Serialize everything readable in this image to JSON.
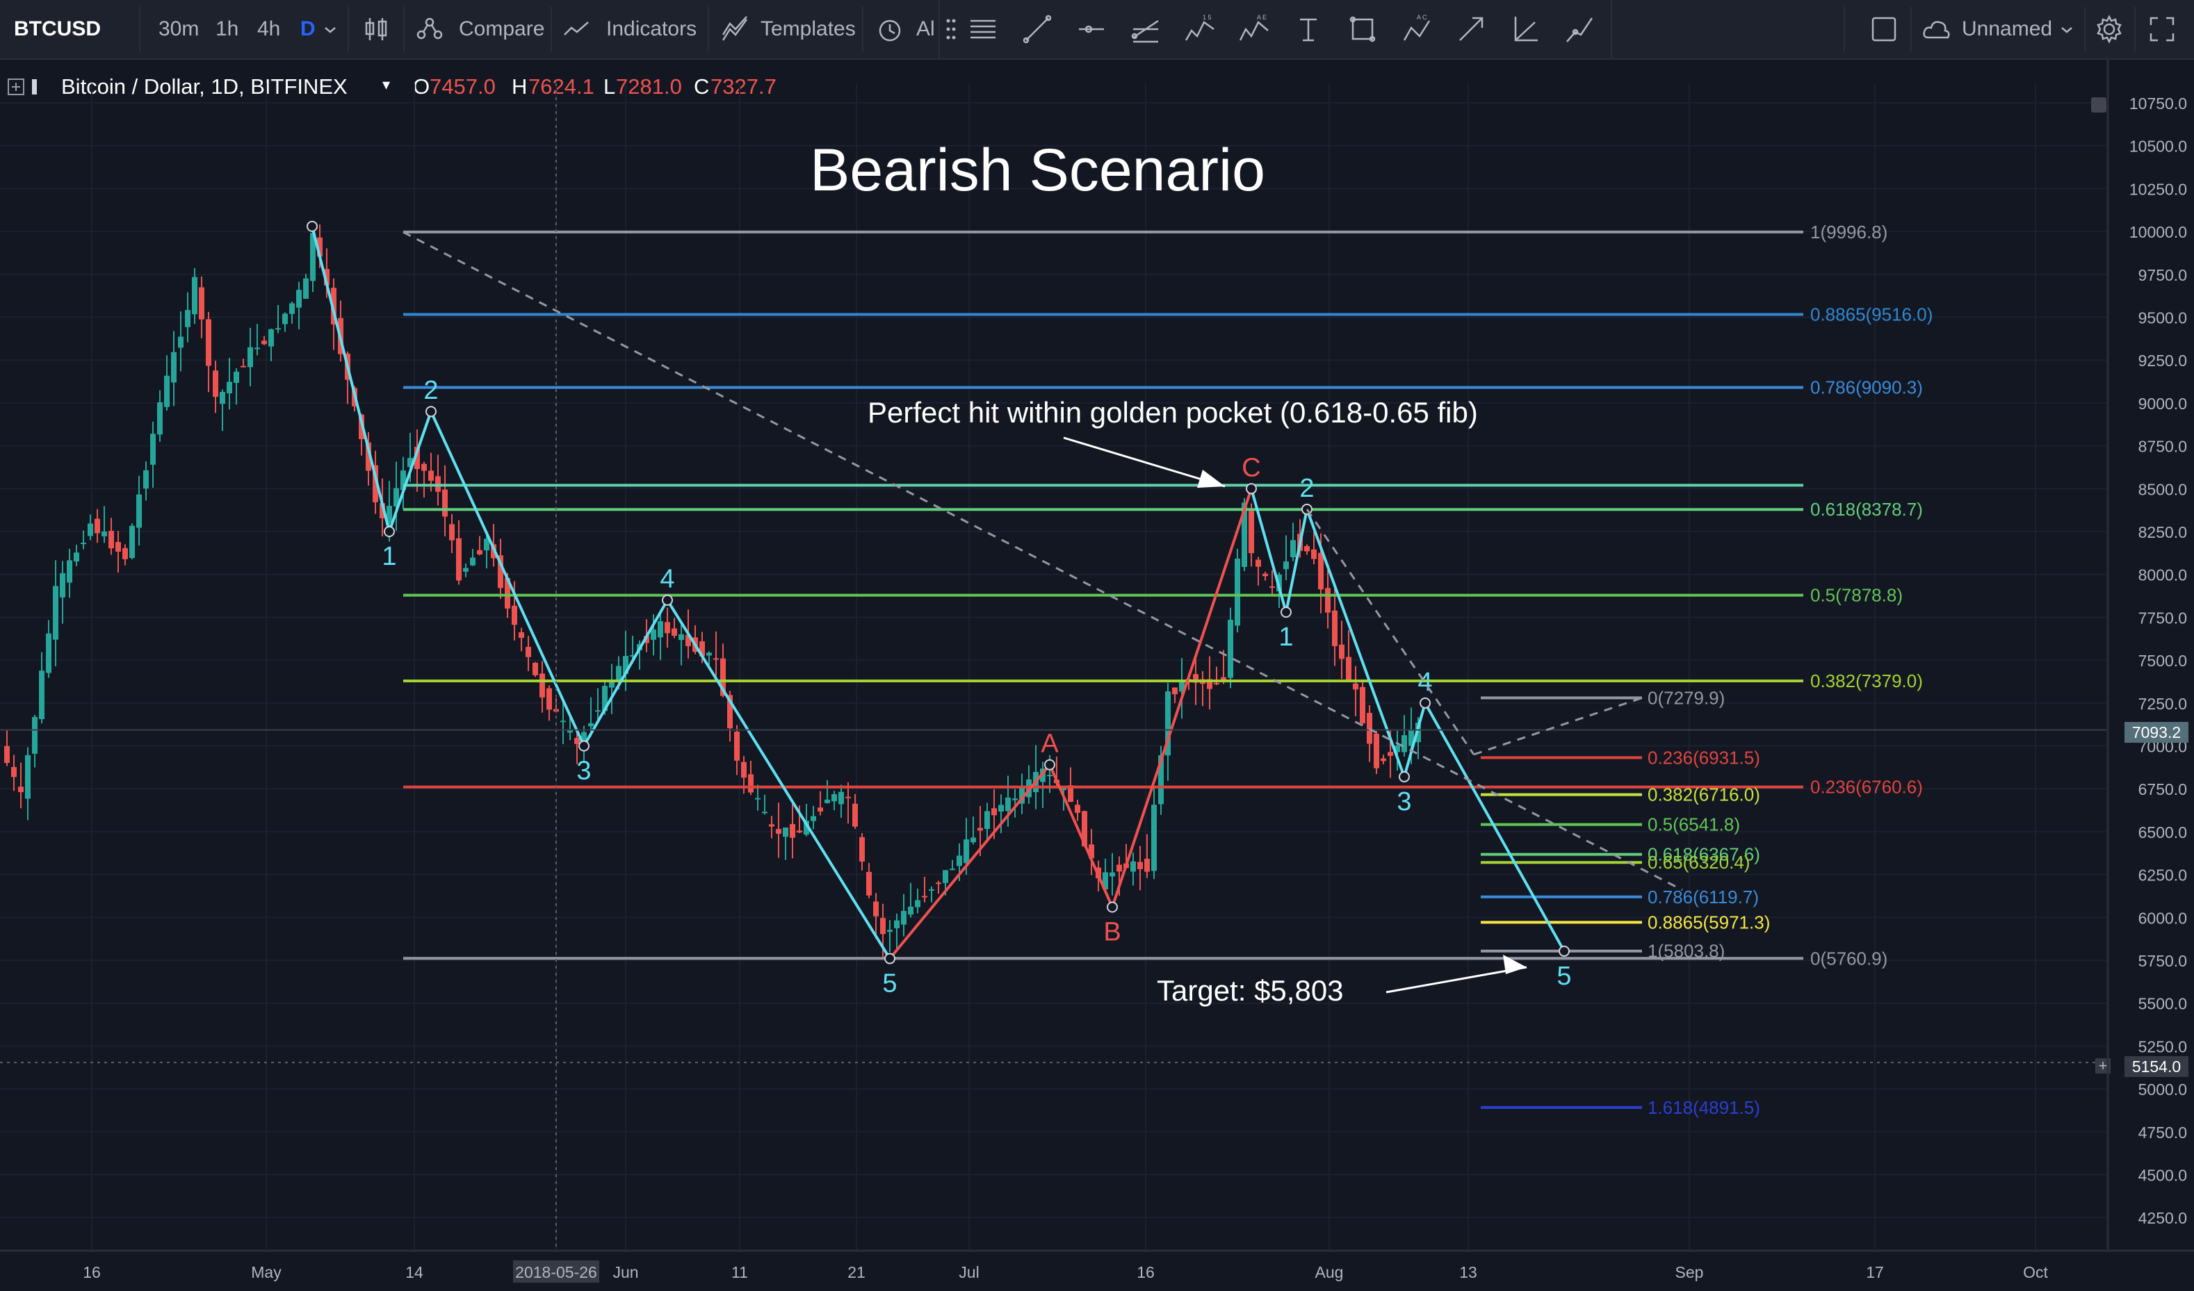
{
  "toolbar": {
    "symbol": "BTCUSD",
    "intervals": [
      "30m",
      "1h",
      "4h",
      "D"
    ],
    "active_interval": "D",
    "compare_label": "Compare",
    "indicators_label": "Indicators",
    "templates_label": "Templates",
    "alert_label": "Al",
    "layout_name": "Unnamed"
  },
  "legend": {
    "title": "Bitcoin / Dollar, 1D, BITFINEX",
    "o_label": "O",
    "o_value": "7457.0",
    "h_label": "H",
    "h_value": "7624.1",
    "l_label": "L",
    "l_value": "7281.0",
    "c_label": "C",
    "c_value": "7327.7"
  },
  "annotations": {
    "title": "Bearish Scenario",
    "golden_pocket": "Perfect hit within golden pocket (0.618-0.65 fib)",
    "target": "Target: $5,803"
  },
  "price_axis": {
    "ticks": [
      "10750.0",
      "10500.0",
      "10250.0",
      "10000.0",
      "9750.0",
      "9500.0",
      "9250.0",
      "9000.0",
      "8750.0",
      "8500.0",
      "8250.0",
      "8000.0",
      "7750.0",
      "7500.0",
      "7250.0",
      "7000.0",
      "6750.0",
      "6500.0",
      "6250.0",
      "6000.0",
      "5750.0",
      "5500.0",
      "5250.0",
      "5000.0",
      "4750.0",
      "4500.0",
      "4250.0"
    ],
    "current_price": "7093.2",
    "crosshair_price": "5154.0"
  },
  "time_axis": {
    "ticks": [
      "16",
      "May",
      "14",
      "2018-05-26",
      "Jun",
      "11",
      "21",
      "Jul",
      "16",
      "Aug",
      "13",
      "Sep",
      "17",
      "Oct"
    ]
  },
  "colors": {
    "background": "#131722",
    "up": "#26a69a",
    "down": "#ef5350",
    "wave_impulse": "#5fe0f0",
    "wave_corrective": "#f05050"
  },
  "chart_data": {
    "type": "candlestick",
    "symbol": "Bitcoin / Dollar, 1D, BITFINEX",
    "ylim": [
      4100,
      10950
    ],
    "y_scale": "linear",
    "grid": true,
    "ohlc_last": {
      "open": 7457.0,
      "high": 7624.1,
      "low": 7281.0,
      "close": 7327.7
    },
    "price_path": [
      {
        "day": 0,
        "p": 7000
      },
      {
        "day": 3,
        "p": 6700
      },
      {
        "day": 8,
        "p": 7900
      },
      {
        "day": 13,
        "p": 8300
      },
      {
        "day": 18,
        "p": 8100
      },
      {
        "day": 23,
        "p": 9000
      },
      {
        "day": 28,
        "p": 9700
      },
      {
        "day": 31,
        "p": 9000
      },
      {
        "day": 36,
        "p": 9300
      },
      {
        "day": 39,
        "p": 9400
      },
      {
        "day": 44,
        "p": 9700
      },
      {
        "day": 45,
        "p": 10000
      },
      {
        "day": 49,
        "p": 9300
      },
      {
        "day": 53,
        "p": 8600
      },
      {
        "day": 55,
        "p": 8300
      },
      {
        "day": 59,
        "p": 8700
      },
      {
        "day": 63,
        "p": 8500
      },
      {
        "day": 66,
        "p": 8000
      },
      {
        "day": 70,
        "p": 8200
      },
      {
        "day": 74,
        "p": 7700
      },
      {
        "day": 78,
        "p": 7300
      },
      {
        "day": 83,
        "p": 7000
      },
      {
        "day": 88,
        "p": 7400
      },
      {
        "day": 92,
        "p": 7600
      },
      {
        "day": 95,
        "p": 7700
      },
      {
        "day": 99,
        "p": 7600
      },
      {
        "day": 103,
        "p": 7500
      },
      {
        "day": 106,
        "p": 6900
      },
      {
        "day": 111,
        "p": 6500
      },
      {
        "day": 115,
        "p": 6500
      },
      {
        "day": 119,
        "p": 6700
      },
      {
        "day": 122,
        "p": 6700
      },
      {
        "day": 125,
        "p": 6100
      },
      {
        "day": 127,
        "p": 5900
      },
      {
        "day": 132,
        "p": 6100
      },
      {
        "day": 137,
        "p": 6300
      },
      {
        "day": 142,
        "p": 6600
      },
      {
        "day": 146,
        "p": 6700
      },
      {
        "day": 150,
        "p": 6850
      },
      {
        "day": 154,
        "p": 6700
      },
      {
        "day": 158,
        "p": 6200
      },
      {
        "day": 161,
        "p": 6300
      },
      {
        "day": 165,
        "p": 6300
      },
      {
        "day": 168,
        "p": 7300
      },
      {
        "day": 171,
        "p": 7400
      },
      {
        "day": 174,
        "p": 7350
      },
      {
        "day": 176,
        "p": 7400
      },
      {
        "day": 179,
        "p": 8400
      },
      {
        "day": 180,
        "p": 8100
      },
      {
        "day": 183,
        "p": 7900
      },
      {
        "day": 186,
        "p": 8200
      },
      {
        "day": 189,
        "p": 8100
      },
      {
        "day": 192,
        "p": 7600
      },
      {
        "day": 195,
        "p": 7300
      },
      {
        "day": 198,
        "p": 6900
      },
      {
        "day": 201,
        "p": 7000
      },
      {
        "day": 204,
        "p": 7100
      }
    ],
    "waves": [
      {
        "label": "1",
        "day": 55,
        "price": 8250,
        "pos": "below"
      },
      {
        "label": "2",
        "day": 61,
        "price": 8950,
        "pos": "above"
      },
      {
        "label": "3",
        "day": 83,
        "price": 7000,
        "pos": "below"
      },
      {
        "label": "4",
        "day": 95,
        "price": 7850,
        "pos": "above"
      },
      {
        "label": "5",
        "day": 127,
        "price": 5760,
        "pos": "below"
      },
      {
        "label": "A",
        "day": 150,
        "price": 6890,
        "pos": "above"
      },
      {
        "label": "B",
        "day": 159,
        "price": 6060,
        "pos": "below"
      },
      {
        "label": "C",
        "day": 179,
        "price": 8500,
        "pos": "above"
      },
      {
        "label": "1",
        "day": 184,
        "price": 7780,
        "pos": "below"
      },
      {
        "label": "2",
        "day": 187,
        "price": 8380,
        "pos": "above"
      },
      {
        "label": "3",
        "day": 201,
        "price": 6820,
        "pos": "below"
      },
      {
        "label": "4",
        "day": 204,
        "price": 7250,
        "pos": "above"
      },
      {
        "label": "5",
        "day": 224,
        "price": 5803,
        "pos": "below"
      }
    ],
    "fib_major": [
      {
        "label": "1(9996.8)",
        "price": 9996.8,
        "color": "#9598a1"
      },
      {
        "label": "0.8865(9516.0)",
        "price": 9516.0,
        "color": "#2e88d1"
      },
      {
        "label": "0.786(9090.3)",
        "price": 9090.3,
        "color": "#3a8bd9"
      },
      {
        "label": "",
        "price": 8520,
        "color": "#5fd2a8"
      },
      {
        "label": "0.618(8378.7)",
        "price": 8378.7,
        "color": "#61cf7a"
      },
      {
        "label": "0.5(7878.8)",
        "price": 7878.8,
        "color": "#62c456"
      },
      {
        "label": "0.382(7379.0)",
        "price": 7379.0,
        "color": "#a5d233"
      },
      {
        "label": "0.236(6760.6)",
        "price": 6760.6,
        "color": "#e0443e"
      },
      {
        "label": "0(5760.9)",
        "price": 5760.9,
        "color": "#9598a1"
      }
    ],
    "fib_minor": [
      {
        "label": "0(7279.9)",
        "price": 7279.9,
        "color": "#9598a1"
      },
      {
        "label": "0.236(6931.5)",
        "price": 6931.5,
        "color": "#e0443e"
      },
      {
        "label": "0.382(6716.0)",
        "price": 6716.0,
        "color": "#c8e040"
      },
      {
        "label": "0.5(6541.8)",
        "price": 6541.8,
        "color": "#62c456"
      },
      {
        "label": "0.618(6367.6)",
        "price": 6367.6,
        "color": "#61cf7a"
      },
      {
        "label": "0.65(6320.4)",
        "price": 6320.4,
        "color": "#a5d233"
      },
      {
        "label": "0.786(6119.7)",
        "price": 6119.7,
        "color": "#3a8bd9"
      },
      {
        "label": "0.8865(5971.3)",
        "price": 5971.3,
        "color": "#f5e642"
      },
      {
        "label": "1(5803.8)",
        "price": 5803.8,
        "color": "#9598a1"
      },
      {
        "label": "1.618(4891.5)",
        "price": 4891.5,
        "color": "#2a3fd1"
      }
    ]
  }
}
